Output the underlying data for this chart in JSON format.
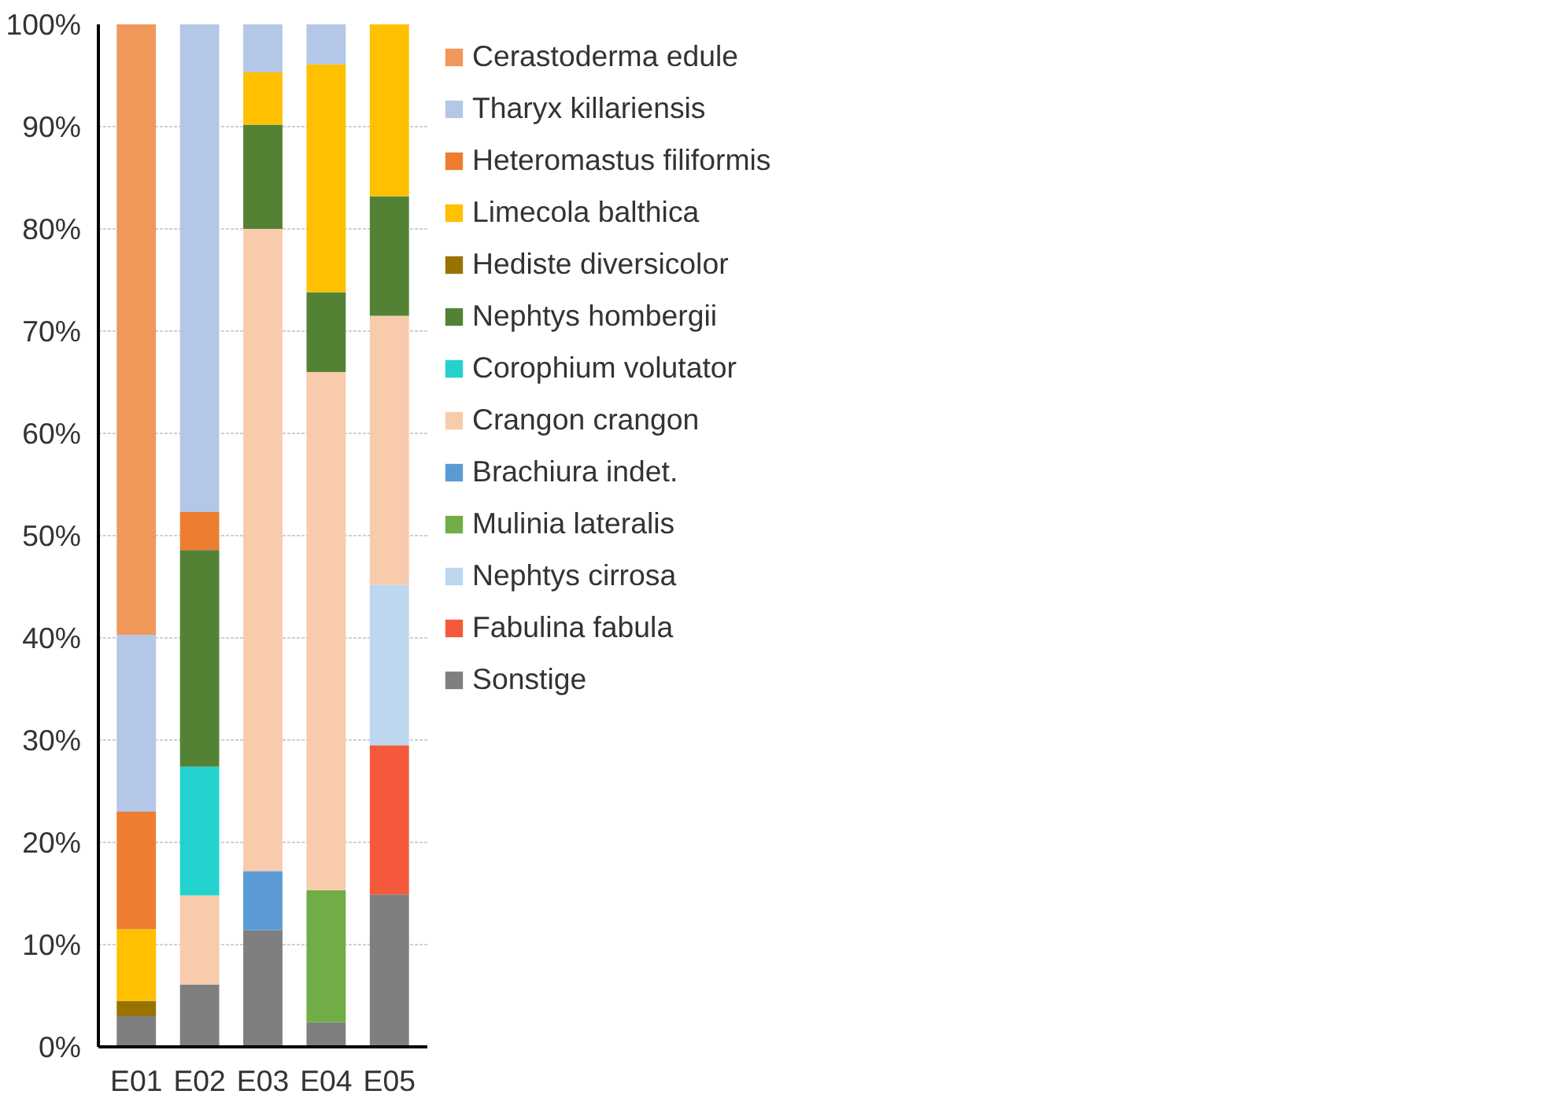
{
  "chart_data": {
    "type": "bar",
    "stacked": true,
    "categories": [
      "E01",
      "E02",
      "E03",
      "E04",
      "E05"
    ],
    "ylim": [
      0,
      100
    ],
    "yticks": [
      {
        "value": 0,
        "label": "0%"
      },
      {
        "value": 10,
        "label": "10%"
      },
      {
        "value": 20,
        "label": "20%"
      },
      {
        "value": 30,
        "label": "30%"
      },
      {
        "value": 40,
        "label": "40%"
      },
      {
        "value": 50,
        "label": "50%"
      },
      {
        "value": 60,
        "label": "60%"
      },
      {
        "value": 70,
        "label": "70%"
      },
      {
        "value": 80,
        "label": "80%"
      },
      {
        "value": 90,
        "label": "90%"
      },
      {
        "value": 100,
        "label": "100%"
      }
    ],
    "grid": "y",
    "legend": "right",
    "series": [
      {
        "name": "Sonstige",
        "color": "#7f7f7f",
        "values": [
          3.0,
          6.1,
          11.4,
          2.4,
          14.9
        ]
      },
      {
        "name": "Fabulina fabula",
        "color": "#f4593c",
        "values": [
          0,
          0,
          0,
          0,
          14.6
        ]
      },
      {
        "name": "Nephtys cirrosa",
        "color": "#bdd7ee",
        "values": [
          0,
          0,
          0,
          0,
          15.7
        ]
      },
      {
        "name": "Mulinia lateralis",
        "color": "#70ad47",
        "values": [
          0,
          0,
          0,
          12.9,
          0
        ]
      },
      {
        "name": "Brachiura indet.",
        "color": "#5b9bd5",
        "values": [
          0,
          0,
          5.8,
          0,
          0
        ]
      },
      {
        "name": "Crangon crangon",
        "color": "#f8cbad",
        "values": [
          0,
          8.7,
          62.8,
          50.7,
          26.3
        ]
      },
      {
        "name": "Corophium volutator",
        "color": "#22d3cd",
        "values": [
          0,
          12.6,
          0,
          0,
          0
        ]
      },
      {
        "name": "Nephtys hombergii",
        "color": "#548235",
        "values": [
          0,
          21.2,
          10.2,
          7.8,
          11.7
        ]
      },
      {
        "name": "Hediste diversicolor",
        "color": "#997300",
        "values": [
          1.5,
          0,
          0,
          0,
          0
        ]
      },
      {
        "name": "Limecola balthica",
        "color": "#ffc000",
        "values": [
          7.0,
          0,
          5.1,
          22.3,
          16.8
        ]
      },
      {
        "name": "Heteromastus filiformis",
        "color": "#ed7d31",
        "values": [
          11.5,
          3.7,
          0,
          0,
          0
        ]
      },
      {
        "name": "Tharyx killariensis",
        "color": "#b4c7e7",
        "values": [
          17.3,
          47.7,
          4.7,
          3.9,
          0
        ]
      },
      {
        "name": "Cerastoderma edule",
        "color": "#f0985a",
        "values": [
          59.7,
          0,
          0,
          0,
          0
        ]
      }
    ]
  }
}
